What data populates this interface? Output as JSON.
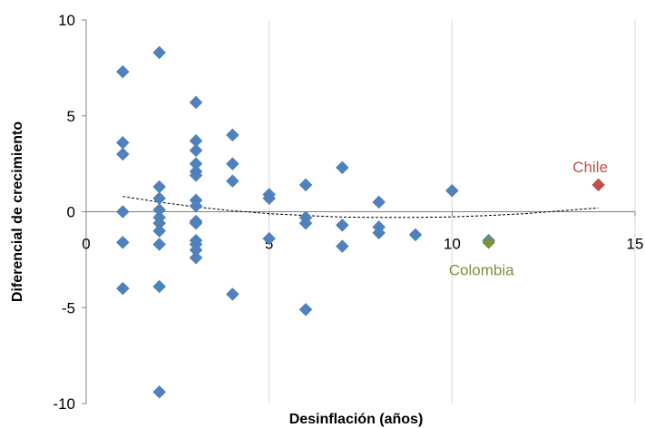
{
  "chart_data": {
    "type": "scatter",
    "xlabel": "Desinflación (años)",
    "ylabel": "Diferencial de crecimiento",
    "xlim": [
      0,
      15
    ],
    "ylim": [
      -10,
      10
    ],
    "x_ticks": [
      0,
      5,
      10,
      15
    ],
    "y_ticks": [
      -10,
      -5,
      0,
      5,
      10
    ],
    "x_tick_labels": [
      "0",
      "5",
      "10",
      "15"
    ],
    "y_tick_labels": [
      "-10",
      "-5",
      "0",
      "5",
      "10"
    ],
    "grid": {
      "vertical": true,
      "horizontal": false
    },
    "colors": {
      "points": "#4f81bd",
      "chile": "#c0504d",
      "colombia": "#77933c",
      "trend": "#000000",
      "grid": "#d9d9d9",
      "axis": "#808080"
    },
    "series": [
      {
        "points": [
          [
            1,
            7.3
          ],
          [
            1,
            3.6
          ],
          [
            1,
            3.0
          ],
          [
            1,
            0.0
          ],
          [
            1,
            -1.6
          ],
          [
            1,
            -4.0
          ],
          [
            2,
            8.3
          ],
          [
            2,
            1.3
          ],
          [
            2,
            0.7
          ],
          [
            2,
            0.1
          ],
          [
            2,
            -0.3
          ],
          [
            2,
            -0.6
          ],
          [
            2,
            -1.0
          ],
          [
            2,
            -1.7
          ],
          [
            2,
            -3.9
          ],
          [
            2,
            -9.4
          ],
          [
            3,
            5.7
          ],
          [
            3,
            3.7
          ],
          [
            3,
            3.2
          ],
          [
            3,
            2.5
          ],
          [
            3,
            2.1
          ],
          [
            3,
            1.9
          ],
          [
            3,
            0.6
          ],
          [
            3,
            0.3
          ],
          [
            3,
            -0.5
          ],
          [
            3,
            -0.6
          ],
          [
            3,
            -1.5
          ],
          [
            3,
            -1.7
          ],
          [
            3,
            -2.0
          ],
          [
            3,
            -2.4
          ],
          [
            4,
            4.0
          ],
          [
            4,
            2.5
          ],
          [
            4,
            1.6
          ],
          [
            4,
            -4.3
          ],
          [
            5,
            0.9
          ],
          [
            5,
            0.7
          ],
          [
            5,
            -1.4
          ],
          [
            6,
            1.4
          ],
          [
            6,
            -0.3
          ],
          [
            6,
            -0.6
          ],
          [
            6,
            -5.1
          ],
          [
            7,
            2.3
          ],
          [
            7,
            -0.7
          ],
          [
            7,
            -1.8
          ],
          [
            8,
            0.5
          ],
          [
            8,
            -0.8
          ],
          [
            8,
            -1.1
          ],
          [
            9,
            -1.2
          ],
          [
            10,
            1.1
          ],
          [
            11,
            -1.5
          ]
        ]
      },
      {
        "name": "Chile",
        "points": [
          [
            14,
            1.4
          ]
        ]
      },
      {
        "name": "Colombia",
        "points": [
          [
            11,
            -1.6
          ]
        ]
      }
    ],
    "trendline": {
      "style": "dashed",
      "points": [
        [
          1,
          0.8
        ],
        [
          2,
          0.5
        ],
        [
          3,
          0.25
        ],
        [
          4,
          0.05
        ],
        [
          5,
          -0.1
        ],
        [
          6,
          -0.2
        ],
        [
          7,
          -0.28
        ],
        [
          8,
          -0.3
        ],
        [
          9,
          -0.3
        ],
        [
          10,
          -0.27
        ],
        [
          11,
          -0.2
        ],
        [
          12,
          -0.1
        ],
        [
          13,
          0.05
        ],
        [
          14,
          0.2
        ]
      ]
    },
    "annotations": [
      {
        "text": "Chile",
        "x": 14,
        "y": 1.4,
        "color": "#c0504d"
      },
      {
        "text": "Colombia",
        "x": 11,
        "y": -1.6,
        "color": "#77933c"
      }
    ]
  }
}
